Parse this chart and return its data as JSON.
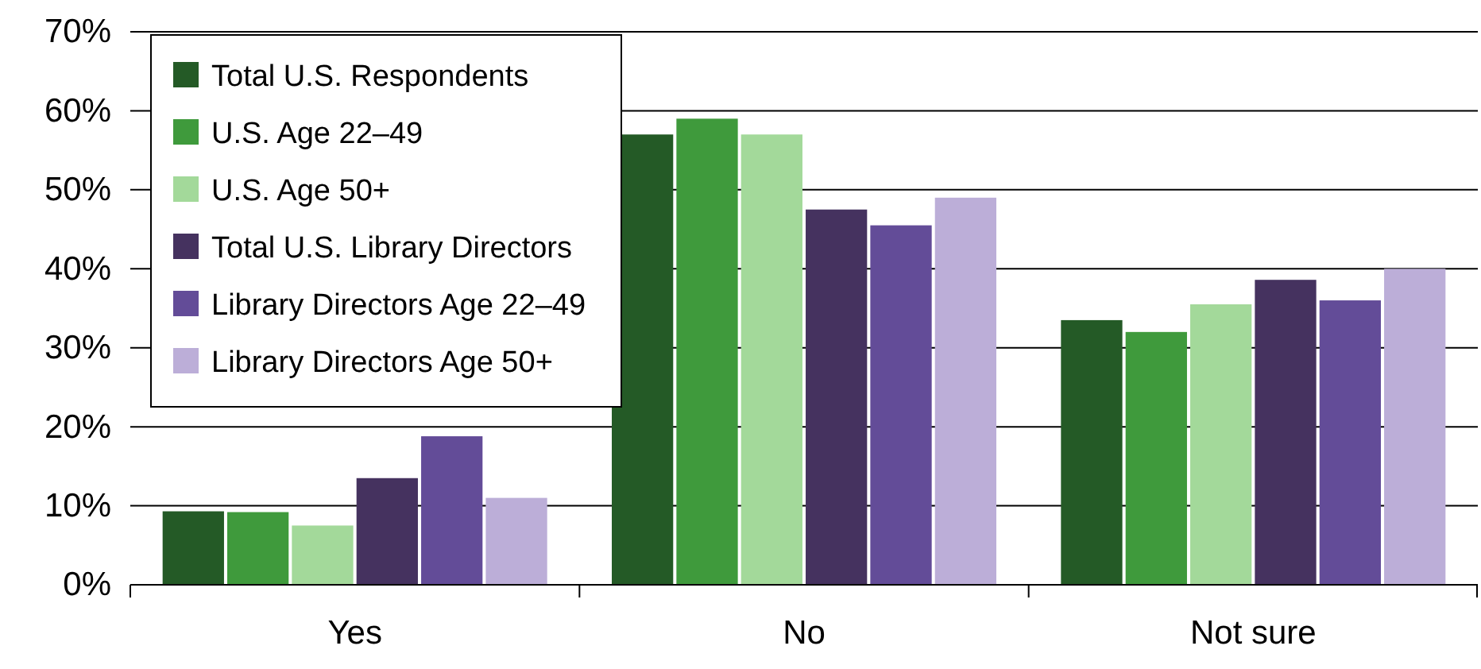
{
  "chart_data": {
    "type": "bar",
    "categories": [
      "Yes",
      "No",
      "Not sure"
    ],
    "series": [
      {
        "name": "Total U.S. Respondents",
        "color": "#245a26",
        "values": [
          9.3,
          57,
          33.5
        ]
      },
      {
        "name": "U.S. Age 22–49",
        "color": "#3f9a3c",
        "values": [
          9.2,
          59,
          32
        ]
      },
      {
        "name": "U.S. Age 50+",
        "color": "#a3d99a",
        "values": [
          7.5,
          57,
          35.5
        ]
      },
      {
        "name": "Total U.S. Library Directors",
        "color": "#45325f",
        "values": [
          13.5,
          47.5,
          38.6
        ]
      },
      {
        "name": "Library Directors Age 22–49",
        "color": "#634c98",
        "values": [
          18.8,
          45.5,
          36
        ]
      },
      {
        "name": "Library Directors Age 50+",
        "color": "#bcaed8",
        "values": [
          11,
          49,
          40
        ]
      }
    ],
    "ylim": [
      0,
      70
    ],
    "yticks": [
      {
        "value": 0,
        "label": "0%"
      },
      {
        "value": 10,
        "label": "10%"
      },
      {
        "value": 20,
        "label": "20%"
      },
      {
        "value": 30,
        "label": "30%"
      },
      {
        "value": 40,
        "label": "40%"
      },
      {
        "value": 50,
        "label": "50%"
      },
      {
        "value": 60,
        "label": "60%"
      },
      {
        "value": 70,
        "label": "70%"
      }
    ],
    "grid": "y",
    "legend": "top left"
  }
}
